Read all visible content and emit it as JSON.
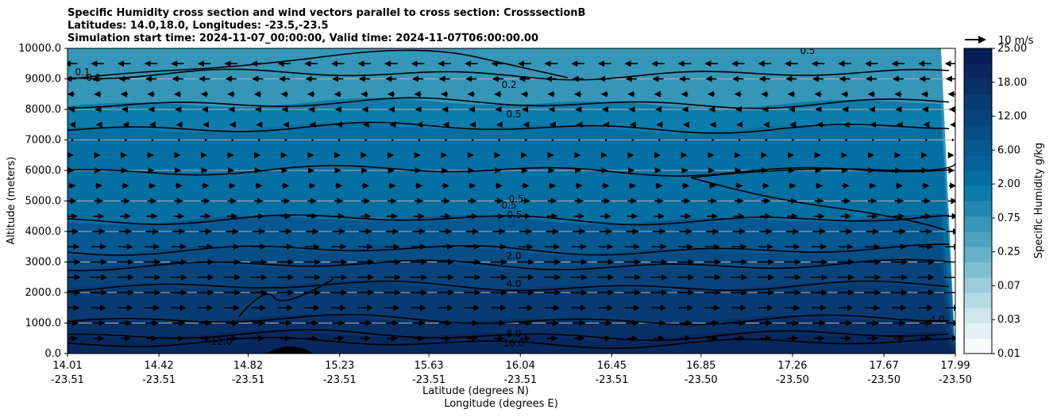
{
  "title_lines": [
    "Specific Humidity cross section and wind vectors parallel to cross section: CrosssectionB",
    "Latitudes: 14.0,18.0, Longitudes: -23.5,-23.5",
    "Simulation start time: 2024-11-07_00:00:00, Valid time: 2024-11-07T06:00:00.00"
  ],
  "chart_data": {
    "type": "heatmap",
    "title": "Specific Humidity cross section and wind vectors parallel to cross section: CrosssectionB",
    "ylabel": "Altitude (meters)",
    "xlabel_lines": [
      "Latitude (degrees N)",
      "Longitude (degrees E)"
    ],
    "ylim": [
      0,
      10000
    ],
    "xlim": [
      14.01,
      17.99
    ],
    "grid": "horizontal",
    "y_ticks": [
      "0.0",
      "1000.0",
      "2000.0",
      "3000.0",
      "4000.0",
      "5000.0",
      "6000.0",
      "7000.0",
      "8000.0",
      "9000.0",
      "10000.0"
    ],
    "x_ticks": [
      {
        "lat": "14.01",
        "lon": "-23.51"
      },
      {
        "lat": "14.42",
        "lon": "-23.51"
      },
      {
        "lat": "14.82",
        "lon": "-23.51"
      },
      {
        "lat": "15.23",
        "lon": "-23.51"
      },
      {
        "lat": "15.63",
        "lon": "-23.51"
      },
      {
        "lat": "16.04",
        "lon": "-23.51"
      },
      {
        "lat": "16.45",
        "lon": "-23.51"
      },
      {
        "lat": "16.85",
        "lon": "-23.50"
      },
      {
        "lat": "17.26",
        "lon": "-23.50"
      },
      {
        "lat": "17.67",
        "lon": "-23.50"
      },
      {
        "lat": "17.99",
        "lon": "-23.50"
      }
    ],
    "colorbar": {
      "label": "Specific Humidity g/kg",
      "tick_labels": [
        "0.01",
        "0.03",
        "0.07",
        "0.25",
        "0.75",
        "2.00",
        "6.00",
        "12.00",
        "18.00",
        "25.00"
      ],
      "colors": [
        "#f7fbfc",
        "#e3f1f4",
        "#cfe7ec",
        "#b5dbe4",
        "#9bcddb",
        "#80bfd2",
        "#66b1c9",
        "#4ca3c0",
        "#3596b8",
        "#2089b0",
        "#0c7cab",
        "#046fa3",
        "#05629a",
        "#065890",
        "#074e86",
        "#08447b",
        "#083b71",
        "#083066",
        "#08275c",
        "#081d58"
      ]
    },
    "contour_labels": [
      "0.1",
      "0.1",
      "0.2",
      "0.5",
      "0.5",
      "0.5",
      "0.5",
      "0.5",
      "2.0",
      "4.0",
      "8.0",
      "12.0",
      "16.0",
      "4.0"
    ],
    "quiver_key": {
      "label": "10 m/s",
      "speed": 10
    },
    "humidity_layers": [
      {
        "z_top": 10000,
        "q": 0.25
      },
      {
        "z_top": 8200,
        "q": 0.5
      },
      {
        "z_top": 7400,
        "q": 0.75
      },
      {
        "z_top": 6000,
        "q": 1.0
      },
      {
        "z_top": 4400,
        "q": 2.0
      },
      {
        "z_top": 3400,
        "q": 3.0
      },
      {
        "z_top": 2900,
        "q": 4.0
      },
      {
        "z_top": 2200,
        "q": 6.0
      },
      {
        "z_top": 1100,
        "q": 8.0
      },
      {
        "z_top": 600,
        "q": 12.0
      },
      {
        "z_top": 350,
        "q": 16.0
      }
    ],
    "wind_profile": [
      {
        "z": 9500,
        "u": -6
      },
      {
        "z": 9000,
        "u": -5
      },
      {
        "z": 8500,
        "u": -3
      },
      {
        "z": 8000,
        "u": -2
      },
      {
        "z": 7500,
        "u": -1
      },
      {
        "z": 7000,
        "u": 0.5
      },
      {
        "z": 6500,
        "u": 1
      },
      {
        "z": 6000,
        "u": 1.5
      },
      {
        "z": 5500,
        "u": 3
      },
      {
        "z": 5000,
        "u": 4
      },
      {
        "z": 4500,
        "u": 5
      },
      {
        "z": 4000,
        "u": 6
      },
      {
        "z": 3500,
        "u": 7
      },
      {
        "z": 3000,
        "u": 8
      },
      {
        "z": 2500,
        "u": 8
      },
      {
        "z": 2000,
        "u": 8
      },
      {
        "z": 1500,
        "u": 7
      },
      {
        "z": 1000,
        "u": 6
      },
      {
        "z": 500,
        "u": 5
      }
    ]
  }
}
